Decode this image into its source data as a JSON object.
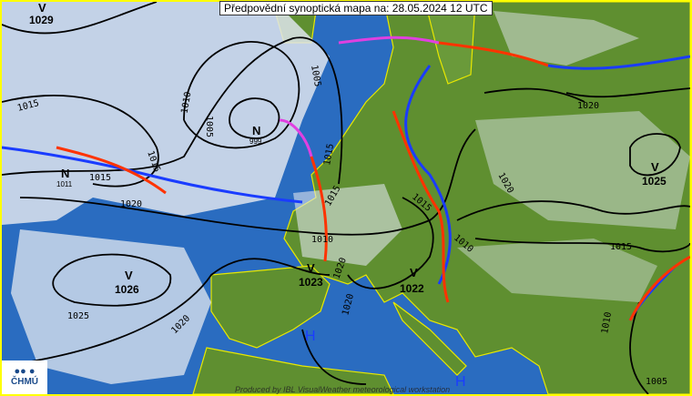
{
  "title": "Předpovědní synoptická mapa na: 28.05.2024 12 UTC",
  "logo": {
    "text": "ČHMÚ"
  },
  "credit": "Produced by IBL VisualWeather meteorological workstation",
  "colors": {
    "sea": "#2a6cc0",
    "land": "#5a8a2e",
    "cloud": "#dfe6ee",
    "cold_front": "#1a3cff",
    "warm_front": "#ff3300",
    "occlusion": "#e040e0",
    "border": "#ffff00"
  },
  "pressure_centers": [
    {
      "type": "V",
      "value": "1029"
    },
    {
      "type": "N",
      "value": "1011"
    },
    {
      "type": "N",
      "value": "999"
    },
    {
      "type": "V",
      "value": "1026"
    },
    {
      "type": "V",
      "value": "1023"
    },
    {
      "type": "V",
      "value": "1022"
    },
    {
      "type": "V",
      "value": "1025"
    },
    {
      "type": "H",
      "value": ""
    },
    {
      "type": "H",
      "value": ""
    }
  ],
  "isobar_labels": [
    "1015",
    "1015",
    "1015",
    "1010",
    "1005",
    "1005",
    "1020",
    "1020",
    "1010",
    "1015",
    "1015",
    "1020",
    "1020",
    "1025",
    "1020",
    "1015",
    "1010",
    "1020",
    "1010",
    "1015",
    "1005"
  ]
}
